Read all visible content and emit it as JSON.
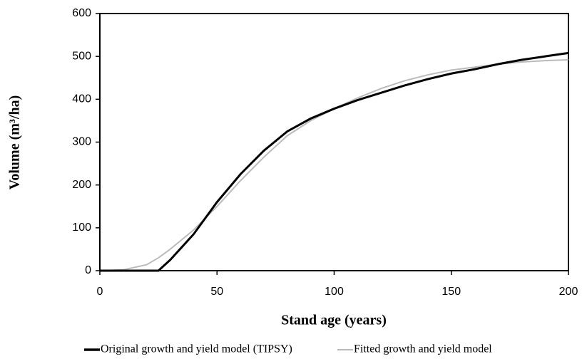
{
  "chart_data": {
    "type": "line",
    "x_label": "Stand age (years)",
    "y_label": "Volume (m³/ha)",
    "x": [
      0,
      10,
      20,
      25,
      30,
      40,
      50,
      60,
      70,
      80,
      90,
      100,
      110,
      120,
      130,
      140,
      150,
      160,
      170,
      180,
      190,
      200
    ],
    "series": [
      {
        "name": "Original growth and yield model (TIPSY)",
        "color": "#000000",
        "values": [
          0,
          0,
          0,
          0,
          25,
          85,
          160,
          225,
          280,
          325,
          355,
          378,
          398,
          415,
          432,
          447,
          460,
          470,
          482,
          492,
          500,
          508
        ]
      },
      {
        "name": "Fitted growth and yield model",
        "color": "#bbbbbb",
        "values": [
          0,
          2,
          14,
          30,
          50,
          95,
          150,
          210,
          265,
          315,
          350,
          378,
          403,
          425,
          443,
          457,
          468,
          475,
          482,
          487,
          490,
          492
        ]
      }
    ],
    "xlim": [
      0,
      200
    ],
    "xticks": [
      0,
      50,
      100,
      150,
      200
    ],
    "ylim": [
      0,
      600
    ],
    "yticks": [
      0,
      100,
      200,
      300,
      400,
      500,
      600
    ],
    "grid": false,
    "legend": "bottom"
  }
}
